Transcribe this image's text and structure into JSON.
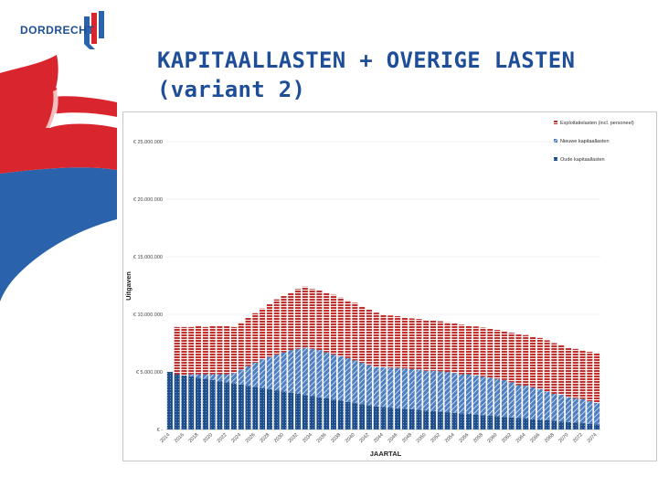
{
  "header": {
    "logo_text": "DORDRECHT",
    "title_line1": "KAPITAALLASTEN + OVERIGE LASTEN",
    "title_line2": "(variant 2)"
  },
  "colors": {
    "title": "#1f4e99",
    "brand_red": "#d9262e",
    "brand_blue": "#2a62ab",
    "series_old": "#1f4e8c",
    "series_new": "#4f7fc0",
    "series_exploitation": "#c0302e"
  },
  "chart_data": {
    "type": "bar",
    "stacked": true,
    "xlabel": "JAARTAL",
    "ylabel": "Uitgaven",
    "ylim": [
      0,
      25000000
    ],
    "yticks": [
      0,
      5000000,
      10000000,
      15000000,
      20000000,
      25000000
    ],
    "ytick_labels": [
      "€ -",
      "€ 5.000.000",
      "€ 10.000.000",
      "€ 15.000.000",
      "€ 20.000.000",
      "€ 25.000.000"
    ],
    "x_tick_labels": [
      "2014",
      "2016",
      "2018",
      "2020",
      "2022",
      "2024",
      "2026",
      "2028",
      "2030",
      "2032",
      "2034",
      "2036",
      "2038",
      "2040",
      "2042",
      "2044",
      "2046",
      "2048",
      "2050",
      "2052",
      "2054",
      "2056",
      "2058",
      "2060",
      "2062",
      "2064",
      "2066",
      "2068",
      "2070",
      "2072",
      "2074"
    ],
    "categories": [
      2014,
      2015,
      2016,
      2017,
      2018,
      2019,
      2020,
      2021,
      2022,
      2023,
      2024,
      2025,
      2026,
      2027,
      2028,
      2029,
      2030,
      2031,
      2032,
      2033,
      2034,
      2035,
      2036,
      2037,
      2038,
      2039,
      2040,
      2041,
      2042,
      2043,
      2044,
      2045,
      2046,
      2047,
      2048,
      2049,
      2050,
      2051,
      2052,
      2053,
      2054,
      2055,
      2056,
      2057,
      2058,
      2059,
      2060,
      2061,
      2062,
      2063,
      2064,
      2065,
      2066,
      2067,
      2068,
      2069,
      2070,
      2071,
      2072,
      2073,
      2074
    ],
    "legend": [
      "Exploitatielasten (incl. personeel)",
      "Nieuwe kapitaallasten",
      "Oude kapitaallasten"
    ],
    "legend_position": "top-right",
    "series": [
      {
        "name": "Oude kapitaallasten",
        "values": [
          5000000,
          4800000,
          4700000,
          4600000,
          4500000,
          4400000,
          4300000,
          4200000,
          4100000,
          4000000,
          3900000,
          3800000,
          3700000,
          3600000,
          3500000,
          3400000,
          3300000,
          3200000,
          3100000,
          3000000,
          2900000,
          2800000,
          2700000,
          2600000,
          2500000,
          2400000,
          2300000,
          2200000,
          2100000,
          2000000,
          1950000,
          1900000,
          1850000,
          1800000,
          1750000,
          1700000,
          1650000,
          1600000,
          1550000,
          1500000,
          1450000,
          1400000,
          1350000,
          1300000,
          1250000,
          1200000,
          1150000,
          1100000,
          1050000,
          1000000,
          950000,
          900000,
          850000,
          800000,
          750000,
          700000,
          650000,
          600000,
          550000,
          500000,
          450000
        ]
      },
      {
        "name": "Nieuwe kapitaallasten",
        "values": [
          0,
          0,
          0,
          200000,
          300000,
          400000,
          500000,
          600000,
          700000,
          900000,
          1300000,
          1700000,
          2100000,
          2500000,
          2800000,
          3100000,
          3400000,
          3700000,
          3900000,
          4100000,
          4100000,
          4100000,
          4000000,
          3900000,
          3850000,
          3800000,
          3700000,
          3600000,
          3500000,
          3400000,
          3450000,
          3450000,
          3500000,
          3500000,
          3500000,
          3500000,
          3450000,
          3500000,
          3500000,
          3500000,
          3450000,
          3400000,
          3450000,
          3400000,
          3350000,
          3300000,
          3250000,
          3200000,
          3050000,
          2850000,
          2850000,
          2750000,
          2650000,
          2500000,
          2350000,
          2300000,
          2150000,
          2100000,
          2100000,
          1950000,
          1850000
        ]
      },
      {
        "name": "Exploitatielasten (incl. personeel)",
        "values": [
          0,
          4100000,
          4200000,
          4100000,
          4200000,
          4100000,
          4200000,
          4200000,
          4200000,
          4000000,
          4100000,
          4200000,
          4300000,
          4400000,
          4600000,
          4800000,
          4900000,
          5000000,
          5200000,
          5300000,
          5200000,
          5200000,
          5200000,
          5200000,
          5100000,
          5000000,
          5000000,
          4900000,
          4800000,
          4750000,
          4600000,
          4550000,
          4500000,
          4450000,
          4400000,
          4400000,
          4400000,
          4350000,
          4350000,
          4300000,
          4300000,
          4300000,
          4200000,
          4250000,
          4250000,
          4250000,
          4250000,
          4250000,
          4300000,
          4400000,
          4400000,
          4400000,
          4450000,
          4450000,
          4400000,
          4350000,
          4300000,
          4300000,
          4250000,
          4300000,
          4350000
        ]
      }
    ]
  }
}
